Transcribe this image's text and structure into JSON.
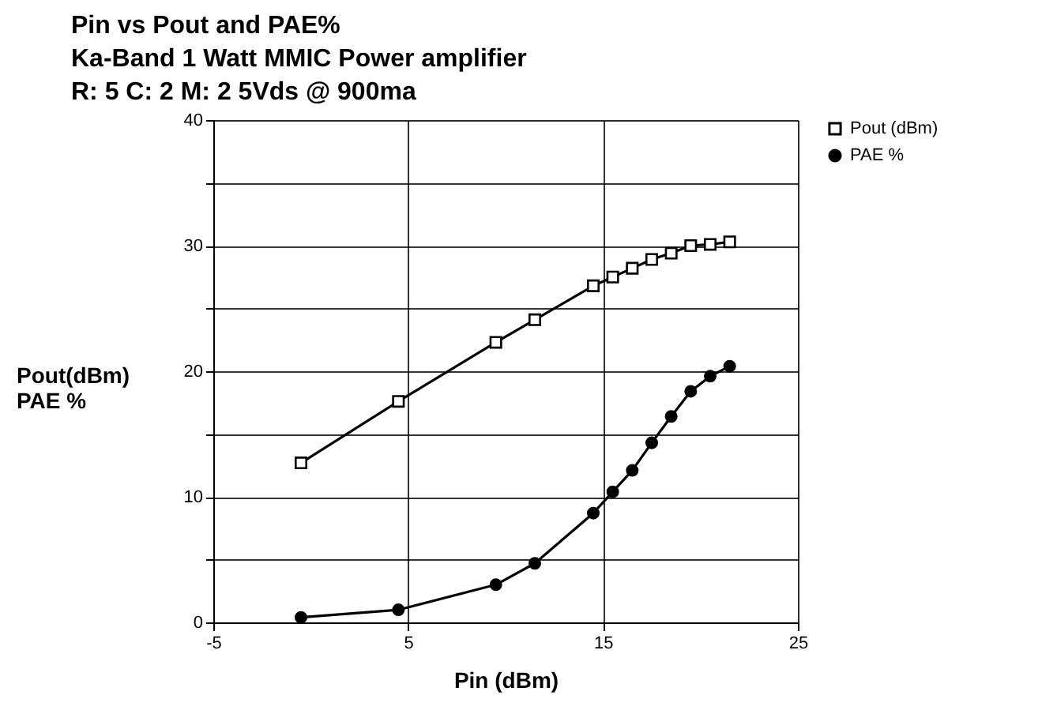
{
  "chart_data": {
    "type": "line",
    "title": "Pin vs Pout and PAE%",
    "subtitle": "Ka-Band 1 Watt MMIC Power amplifier\nR: 5 C: 2 M: 2  5Vds @ 900ma",
    "xlabel": "Pin  (dBm)",
    "ylabel": "Pout(dBm)\nPAE %",
    "x": [
      -0.5,
      4.5,
      9.5,
      11.5,
      14.5,
      15.5,
      16.5,
      17.5,
      18.5,
      19.5,
      20.5,
      21.5
    ],
    "series": [
      {
        "name": "Pout (dBm)",
        "color": "#000000",
        "marker": "square",
        "values": [
          12.7,
          17.6,
          22.3,
          24.1,
          26.8,
          27.5,
          28.2,
          28.9,
          29.4,
          30.0,
          30.1,
          30.3
        ]
      },
      {
        "name": "PAE %",
        "color": "#000000",
        "marker": "circle",
        "values": [
          0.4,
          1.0,
          3.0,
          4.7,
          8.7,
          10.4,
          12.1,
          14.3,
          16.4,
          18.4,
          19.6,
          20.4
        ]
      }
    ],
    "xlim": [
      -5,
      25
    ],
    "xticks": [
      -5,
      5,
      15,
      25
    ],
    "ylim": [
      0,
      40
    ],
    "yticks": [
      0,
      {
        "value": 5,
        "label": null
      },
      10,
      {
        "value": 15,
        "label": null
      },
      20,
      {
        "value": 25,
        "label": null
      },
      30,
      {
        "value": 35,
        "label": null
      },
      40
    ],
    "grid": true,
    "legend": "right",
    "line_style": "solid"
  }
}
